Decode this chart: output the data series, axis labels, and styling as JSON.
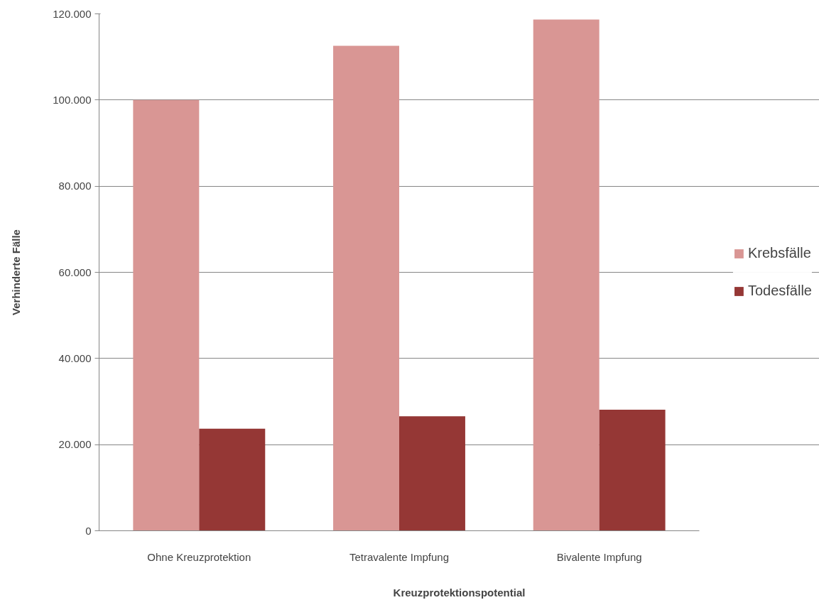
{
  "chart_data": {
    "type": "bar",
    "xlabel": "Kreuzprotektionspotential",
    "ylabel": "Verhinderte Fälle",
    "categories": [
      "Ohne Kreuzprotektion",
      "Tetravalente Impfung",
      "Bivalente Impfung"
    ],
    "series": [
      {
        "name": "Krebsfälle",
        "color": "#d99694",
        "values": [
          100000,
          112600,
          118700
        ]
      },
      {
        "name": "Todesfälle",
        "color": "#953735",
        "values": [
          23700,
          26600,
          28100
        ]
      }
    ],
    "ylim": [
      0,
      120000
    ],
    "yticks": [
      {
        "value": 0,
        "label": "0"
      },
      {
        "value": 20000,
        "label": "20.000"
      },
      {
        "value": 40000,
        "label": "40.000"
      },
      {
        "value": 60000,
        "label": "60.000"
      },
      {
        "value": 80000,
        "label": "80.000"
      },
      {
        "value": 100000,
        "label": "100.000"
      },
      {
        "value": 120000,
        "label": "120.000"
      }
    ],
    "grid": "y",
    "legend": "right"
  }
}
